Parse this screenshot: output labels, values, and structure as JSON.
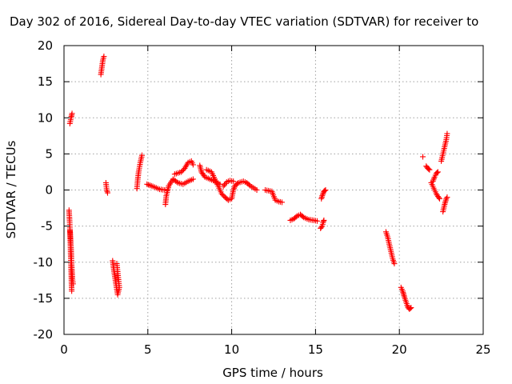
{
  "chart_data": {
    "type": "scatter",
    "title": "Day 302 of 2016, Sidereal Day-to-day VTEC variation (SDTVAR) for receiver to",
    "xlabel": "GPS time / hours",
    "ylabel": "SDTVAR / TECUs",
    "xlim": [
      0,
      25
    ],
    "ylim": [
      -20,
      20
    ],
    "xticks": [
      0,
      5,
      10,
      15,
      20,
      25
    ],
    "yticks": [
      -20,
      -15,
      -10,
      -5,
      0,
      5,
      10,
      15,
      20
    ],
    "grid": true,
    "marker": "plus",
    "color": "#ff0000",
    "segments": [
      [
        [
          0.3,
          -2.8
        ],
        [
          0.34,
          -4.5
        ],
        [
          0.37,
          -6.5
        ],
        [
          0.4,
          -9.0
        ],
        [
          0.43,
          -11.5
        ],
        [
          0.46,
          -14.0
        ]
      ],
      [
        [
          0.36,
          -5.6
        ],
        [
          0.42,
          -8.0
        ],
        [
          0.46,
          -10.5
        ],
        [
          0.5,
          -12.2
        ],
        [
          0.54,
          -13.0
        ]
      ],
      [
        [
          0.35,
          9.2
        ],
        [
          0.42,
          10.0
        ],
        [
          0.48,
          10.6
        ]
      ],
      [
        [
          2.2,
          16.0
        ],
        [
          2.26,
          17.0
        ],
        [
          2.32,
          18.0
        ],
        [
          2.38,
          18.5
        ]
      ],
      [
        [
          2.5,
          1.0
        ],
        [
          2.55,
          0.0
        ],
        [
          2.6,
          -0.4
        ]
      ],
      [
        [
          2.9,
          -9.8
        ],
        [
          3.0,
          -11.5
        ],
        [
          3.1,
          -13.0
        ],
        [
          3.2,
          -14.5
        ],
        [
          3.3,
          -13.5
        ],
        [
          3.15,
          -10.2
        ]
      ],
      [
        [
          4.35,
          0.2
        ],
        [
          4.4,
          1.5
        ],
        [
          4.45,
          2.5
        ],
        [
          4.55,
          3.8
        ],
        [
          4.65,
          4.8
        ]
      ],
      [
        [
          4.95,
          0.8
        ],
        [
          5.3,
          0.5
        ],
        [
          5.7,
          0.1
        ],
        [
          6.0,
          0.0
        ]
      ],
      [
        [
          6.05,
          -2.0
        ],
        [
          6.1,
          -0.8
        ],
        [
          6.25,
          0.6
        ],
        [
          6.5,
          1.5
        ],
        [
          6.8,
          1.0
        ],
        [
          7.1,
          0.8
        ],
        [
          7.4,
          1.2
        ],
        [
          7.7,
          1.5
        ]
      ],
      [
        [
          6.6,
          2.2
        ],
        [
          7.0,
          2.5
        ],
        [
          7.2,
          3.0
        ],
        [
          7.4,
          3.8
        ],
        [
          7.6,
          4.0
        ],
        [
          7.7,
          3.5
        ]
      ],
      [
        [
          8.1,
          3.4
        ],
        [
          8.2,
          2.5
        ],
        [
          8.4,
          1.8
        ],
        [
          8.7,
          1.5
        ],
        [
          9.0,
          1.2
        ],
        [
          9.3,
          0.8
        ]
      ],
      [
        [
          8.5,
          2.8
        ],
        [
          8.8,
          2.5
        ],
        [
          9.0,
          1.5
        ],
        [
          9.2,
          0.5
        ],
        [
          9.4,
          -0.5
        ],
        [
          9.6,
          -1.0
        ],
        [
          9.8,
          -1.4
        ],
        [
          10.0,
          -1.2
        ],
        [
          10.1,
          0.0
        ],
        [
          10.2,
          0.6
        ],
        [
          10.4,
          1.0
        ],
        [
          10.7,
          1.2
        ],
        [
          10.9,
          1.0
        ],
        [
          11.1,
          0.6
        ],
        [
          11.3,
          0.3
        ],
        [
          11.5,
          0.0
        ]
      ],
      [
        [
          9.5,
          0.5
        ],
        [
          9.7,
          1.1
        ],
        [
          9.9,
          1.3
        ],
        [
          10.1,
          1.2
        ]
      ],
      [
        [
          12.0,
          0.0
        ],
        [
          12.2,
          -0.1
        ],
        [
          12.4,
          -0.2
        ],
        [
          12.6,
          -1.4
        ],
        [
          12.8,
          -1.6
        ],
        [
          13.0,
          -1.7
        ]
      ],
      [
        [
          13.5,
          -4.2
        ],
        [
          13.7,
          -4.0
        ],
        [
          13.9,
          -3.6
        ],
        [
          14.1,
          -3.4
        ],
        [
          14.3,
          -3.8
        ],
        [
          14.6,
          -4.1
        ],
        [
          14.9,
          -4.2
        ],
        [
          15.1,
          -4.3
        ]
      ],
      [
        [
          15.3,
          -5.3
        ],
        [
          15.4,
          -5.0
        ],
        [
          15.45,
          -4.5
        ],
        [
          15.5,
          -4.2
        ]
      ],
      [
        [
          15.35,
          -1.2
        ],
        [
          15.4,
          -0.8
        ],
        [
          15.5,
          -0.2
        ],
        [
          15.6,
          0.0
        ]
      ],
      [
        [
          19.2,
          -5.8
        ],
        [
          19.3,
          -6.5
        ],
        [
          19.4,
          -7.5
        ],
        [
          19.5,
          -8.5
        ],
        [
          19.6,
          -9.5
        ],
        [
          19.7,
          -10.2
        ]
      ],
      [
        [
          20.1,
          -13.5
        ],
        [
          20.2,
          -14.0
        ],
        [
          20.3,
          -14.8
        ],
        [
          20.4,
          -15.5
        ],
        [
          20.5,
          -16.2
        ],
        [
          20.6,
          -16.5
        ],
        [
          20.7,
          -16.3
        ]
      ],
      [
        [
          21.4,
          4.6
        ]
      ],
      [
        [
          21.6,
          3.3
        ],
        [
          21.7,
          3.0
        ],
        [
          21.8,
          2.8
        ]
      ],
      [
        [
          21.9,
          1.0
        ],
        [
          22.0,
          0.5
        ],
        [
          22.1,
          0.0
        ],
        [
          22.2,
          -0.5
        ],
        [
          22.3,
          -0.9
        ],
        [
          22.4,
          -1.2
        ]
      ],
      [
        [
          22.0,
          1.2
        ],
        [
          22.1,
          1.8
        ],
        [
          22.2,
          2.3
        ],
        [
          22.3,
          2.5
        ]
      ],
      [
        [
          22.5,
          4.0
        ],
        [
          22.6,
          5.0
        ],
        [
          22.7,
          6.0
        ],
        [
          22.8,
          7.0
        ],
        [
          22.85,
          7.8
        ]
      ],
      [
        [
          22.6,
          -3.0
        ],
        [
          22.7,
          -2.0
        ],
        [
          22.8,
          -1.2
        ],
        [
          22.85,
          -1.0
        ]
      ]
    ]
  }
}
